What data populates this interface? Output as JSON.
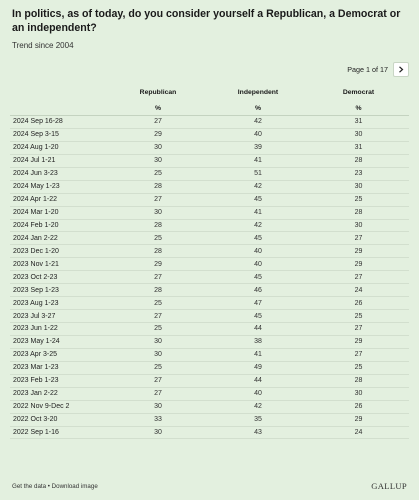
{
  "header": {
    "title": "In politics, as of today, do you consider yourself a Republican, a Democrat or an independent?",
    "subtitle": "Trend since 2004"
  },
  "pagination": {
    "label": "Page 1 of 17",
    "next_icon": "chevron-right-icon"
  },
  "table": {
    "columns": [
      "Republican",
      "Independent",
      "Democrat"
    ],
    "units": [
      "%",
      "%",
      "%"
    ],
    "rows": [
      {
        "date": "2024 Sep 16-28",
        "rep": "27",
        "ind": "42",
        "dem": "31"
      },
      {
        "date": "2024 Sep 3-15",
        "rep": "29",
        "ind": "40",
        "dem": "30"
      },
      {
        "date": "2024 Aug 1-20",
        "rep": "30",
        "ind": "39",
        "dem": "31"
      },
      {
        "date": "2024 Jul 1-21",
        "rep": "30",
        "ind": "41",
        "dem": "28"
      },
      {
        "date": "2024 Jun 3-23",
        "rep": "25",
        "ind": "51",
        "dem": "23"
      },
      {
        "date": "2024 May 1-23",
        "rep": "28",
        "ind": "42",
        "dem": "30"
      },
      {
        "date": "2024 Apr 1-22",
        "rep": "27",
        "ind": "45",
        "dem": "25"
      },
      {
        "date": "2024 Mar 1-20",
        "rep": "30",
        "ind": "41",
        "dem": "28"
      },
      {
        "date": "2024 Feb 1-20",
        "rep": "28",
        "ind": "42",
        "dem": "30"
      },
      {
        "date": "2024 Jan 2-22",
        "rep": "25",
        "ind": "45",
        "dem": "27"
      },
      {
        "date": "2023 Dec 1-20",
        "rep": "28",
        "ind": "40",
        "dem": "29"
      },
      {
        "date": "2023 Nov 1-21",
        "rep": "29",
        "ind": "40",
        "dem": "29"
      },
      {
        "date": "2023 Oct 2-23",
        "rep": "27",
        "ind": "45",
        "dem": "27"
      },
      {
        "date": "2023 Sep 1-23",
        "rep": "28",
        "ind": "46",
        "dem": "24"
      },
      {
        "date": "2023 Aug 1-23",
        "rep": "25",
        "ind": "47",
        "dem": "26"
      },
      {
        "date": "2023 Jul 3-27",
        "rep": "27",
        "ind": "45",
        "dem": "25"
      },
      {
        "date": "2023 Jun 1-22",
        "rep": "25",
        "ind": "44",
        "dem": "27"
      },
      {
        "date": "2023 May 1-24",
        "rep": "30",
        "ind": "38",
        "dem": "29"
      },
      {
        "date": "2023 Apr 3-25",
        "rep": "30",
        "ind": "41",
        "dem": "27"
      },
      {
        "date": "2023 Mar 1-23",
        "rep": "25",
        "ind": "49",
        "dem": "25"
      },
      {
        "date": "2023 Feb 1-23",
        "rep": "27",
        "ind": "44",
        "dem": "28"
      },
      {
        "date": "2023 Jan 2-22",
        "rep": "27",
        "ind": "40",
        "dem": "30"
      },
      {
        "date": "2022 Nov 9-Dec 2",
        "rep": "30",
        "ind": "42",
        "dem": "26"
      },
      {
        "date": "2022 Oct 3-20",
        "rep": "33",
        "ind": "35",
        "dem": "29"
      },
      {
        "date": "2022 Sep 1-16",
        "rep": "30",
        "ind": "43",
        "dem": "24"
      }
    ]
  },
  "footer": {
    "get_data": "Get the data",
    "separator": " • ",
    "download": "Download image",
    "brand": "GALLUP"
  },
  "colors": {
    "background": "#e3f0df",
    "row_divider": "#d2dfce",
    "text": "#1a1a1a"
  }
}
